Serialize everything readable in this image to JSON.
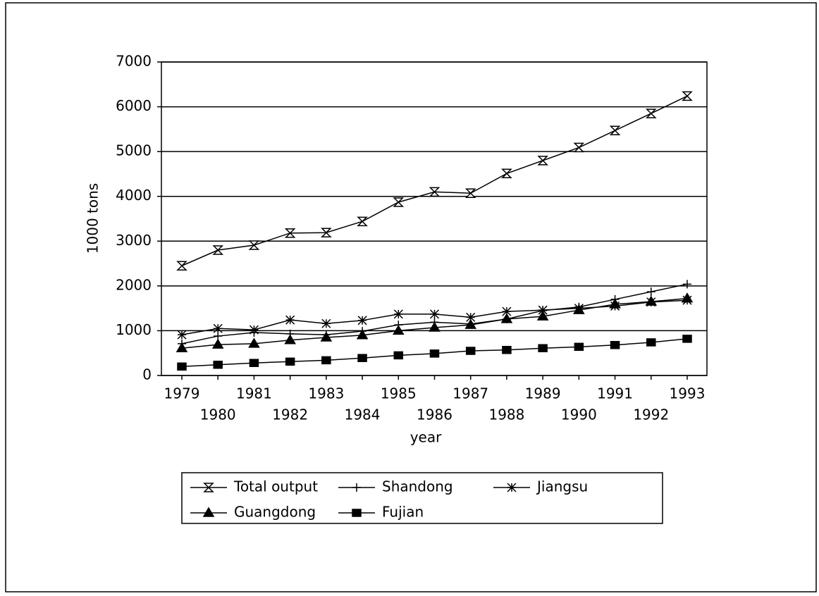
{
  "chart_data": {
    "type": "line",
    "ylabel": "1000 tons",
    "xlabel": "year",
    "categories": [
      "1979",
      "1980",
      "1981",
      "1982",
      "1983",
      "1984",
      "1985",
      "1986",
      "1987",
      "1988",
      "1989",
      "1990",
      "1991",
      "1992",
      "1993"
    ],
    "ylim": [
      0,
      7000
    ],
    "yticks": [
      0,
      1000,
      2000,
      3000,
      4000,
      5000,
      6000,
      7000
    ],
    "grid": true,
    "series": [
      {
        "name": "Total output",
        "color": "#000000",
        "marker": "hourglass",
        "values": [
          2450,
          2800,
          2910,
          3180,
          3190,
          3440,
          3870,
          4100,
          4070,
          4510,
          4800,
          5090,
          5470,
          5850,
          6240
        ]
      },
      {
        "name": "Shandong",
        "color": "#000000",
        "marker": "plus",
        "values": [
          710,
          880,
          960,
          930,
          910,
          990,
          1130,
          1190,
          1150,
          1260,
          1450,
          1530,
          1700,
          1870,
          2040
        ]
      },
      {
        "name": "Jiangsu",
        "color": "#000000",
        "marker": "asterisk",
        "values": [
          910,
          1050,
          1020,
          1240,
          1160,
          1230,
          1370,
          1370,
          1300,
          1430,
          1460,
          1500,
          1550,
          1640,
          1680
        ]
      },
      {
        "name": "Guangdong",
        "color": "#000000",
        "marker": "triangle",
        "values": [
          610,
          690,
          710,
          790,
          850,
          900,
          1000,
          1070,
          1130,
          1260,
          1320,
          1460,
          1590,
          1650,
          1720
        ]
      },
      {
        "name": "Fujian",
        "color": "#000000",
        "marker": "square",
        "values": [
          200,
          240,
          280,
          310,
          340,
          390,
          450,
          490,
          550,
          570,
          610,
          640,
          680,
          740,
          820
        ]
      }
    ]
  }
}
